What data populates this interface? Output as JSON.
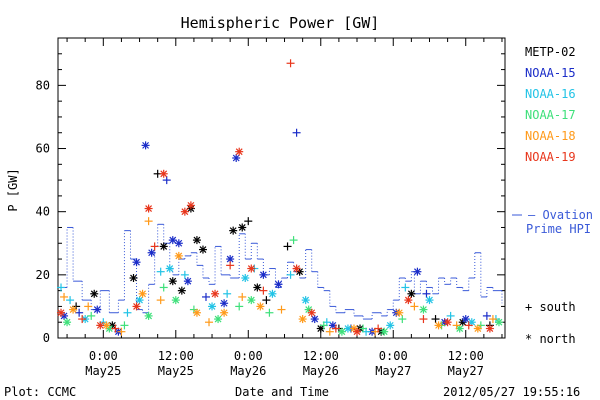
{
  "chart_data": {
    "type": "scatter",
    "title": "Hemispheric Power [GW]",
    "ylabel": "P [GW]",
    "xlabel": "Date and Time",
    "x_unit": "hours since 2012-05-24 00:00 UT",
    "xlim": [
      16.5,
      90.5
    ],
    "ylim": [
      0,
      95
    ],
    "yticks": [
      0,
      20,
      40,
      60,
      80
    ],
    "xticks": [
      {
        "x": 24,
        "label_time": "0:00",
        "label_date": "May25"
      },
      {
        "x": 36,
        "label_time": "12:00",
        "label_date": "May25"
      },
      {
        "x": 48,
        "label_time": "0:00",
        "label_date": "May26"
      },
      {
        "x": 60,
        "label_time": "12:00",
        "label_date": "May26"
      },
      {
        "x": 72,
        "label_time": "0:00",
        "label_date": "May27"
      },
      {
        "x": 84,
        "label_time": "12:00",
        "label_date": "May27"
      }
    ],
    "legend": {
      "position": "right",
      "entries": [
        {
          "name": "METP-02",
          "color": "#000000"
        },
        {
          "name": "NOAA-15",
          "color": "#1a2cc8"
        },
        {
          "name": "NOAA-16",
          "color": "#22c3e6"
        },
        {
          "name": "NOAA-17",
          "color": "#3ee07a"
        },
        {
          "name": "NOAA-18",
          "color": "#ff9a1a"
        },
        {
          "name": "NOAA-19",
          "color": "#e8361c"
        }
      ],
      "ovation_label_1": "– Ovation",
      "ovation_label_2": "Prime HPI",
      "south_label": "+ south",
      "north_label": "* north"
    },
    "ovation_color": "#3a5ad8",
    "ovation_prime": [
      {
        "t": 16.5,
        "v": 16
      },
      {
        "t": 18.0,
        "v": 35
      },
      {
        "t": 19.0,
        "v": 18
      },
      {
        "t": 20.5,
        "v": 12
      },
      {
        "t": 22.0,
        "v": 9
      },
      {
        "t": 23.5,
        "v": 15
      },
      {
        "t": 25.0,
        "v": 8
      },
      {
        "t": 26.5,
        "v": 12
      },
      {
        "t": 27.5,
        "v": 34
      },
      {
        "t": 28.5,
        "v": 25
      },
      {
        "t": 29.5,
        "v": 9
      },
      {
        "t": 30.5,
        "v": 8
      },
      {
        "t": 31.5,
        "v": 17
      },
      {
        "t": 32.5,
        "v": 29
      },
      {
        "t": 33.0,
        "v": 36
      },
      {
        "t": 34.0,
        "v": 30
      },
      {
        "t": 35.0,
        "v": 22
      },
      {
        "t": 35.5,
        "v": 20
      },
      {
        "t": 36.5,
        "v": 25
      },
      {
        "t": 37.5,
        "v": 26
      },
      {
        "t": 38.5,
        "v": 27
      },
      {
        "t": 39.5,
        "v": 23
      },
      {
        "t": 40.5,
        "v": 19
      },
      {
        "t": 41.5,
        "v": 17
      },
      {
        "t": 42.5,
        "v": 29
      },
      {
        "t": 43.5,
        "v": 20
      },
      {
        "t": 45.0,
        "v": 19
      },
      {
        "t": 46.5,
        "v": 33
      },
      {
        "t": 47.5,
        "v": 25
      },
      {
        "t": 48.5,
        "v": 30
      },
      {
        "t": 49.5,
        "v": 25
      },
      {
        "t": 50.5,
        "v": 20
      },
      {
        "t": 51.5,
        "v": 22
      },
      {
        "t": 52.5,
        "v": 16
      },
      {
        "t": 53.5,
        "v": 19
      },
      {
        "t": 54.5,
        "v": 24
      },
      {
        "t": 55.5,
        "v": 21
      },
      {
        "t": 56.5,
        "v": 19
      },
      {
        "t": 57.5,
        "v": 28
      },
      {
        "t": 58.5,
        "v": 21
      },
      {
        "t": 59.5,
        "v": 16
      },
      {
        "t": 60.5,
        "v": 15
      },
      {
        "t": 61.5,
        "v": 10
      },
      {
        "t": 62.5,
        "v": 8
      },
      {
        "t": 64.0,
        "v": 9
      },
      {
        "t": 65.5,
        "v": 7
      },
      {
        "t": 67.0,
        "v": 6
      },
      {
        "t": 68.5,
        "v": 8
      },
      {
        "t": 70.0,
        "v": 7
      },
      {
        "t": 71.0,
        "v": 9
      },
      {
        "t": 72.0,
        "v": 12
      },
      {
        "t": 73.0,
        "v": 19
      },
      {
        "t": 74.0,
        "v": 18
      },
      {
        "t": 75.0,
        "v": 21
      },
      {
        "t": 75.5,
        "v": 14
      },
      {
        "t": 76.5,
        "v": 18
      },
      {
        "t": 77.5,
        "v": 16
      },
      {
        "t": 78.5,
        "v": 14
      },
      {
        "t": 79.5,
        "v": 19
      },
      {
        "t": 80.5,
        "v": 17
      },
      {
        "t": 81.5,
        "v": 19
      },
      {
        "t": 82.5,
        "v": 16
      },
      {
        "t": 83.5,
        "v": 15
      },
      {
        "t": 84.5,
        "v": 19
      },
      {
        "t": 85.5,
        "v": 27
      },
      {
        "t": 86.5,
        "v": 13
      },
      {
        "t": 87.5,
        "v": 16
      },
      {
        "t": 88.5,
        "v": 15
      },
      {
        "t": 90.0,
        "v": 11
      }
    ],
    "series": [
      {
        "name": "METP-02",
        "color": "#000000",
        "points": [
          {
            "t": 19.5,
            "v": 10,
            "h": "S"
          },
          {
            "t": 22.5,
            "v": 14,
            "h": "N"
          },
          {
            "t": 25.5,
            "v": 4,
            "h": "N"
          },
          {
            "t": 29.0,
            "v": 19,
            "h": "N"
          },
          {
            "t": 33.0,
            "v": 52,
            "h": "S"
          },
          {
            "t": 34.0,
            "v": 29,
            "h": "N"
          },
          {
            "t": 35.5,
            "v": 18,
            "h": "N"
          },
          {
            "t": 37.0,
            "v": 15,
            "h": "N"
          },
          {
            "t": 38.5,
            "v": 41,
            "h": "N"
          },
          {
            "t": 39.5,
            "v": 31,
            "h": "N"
          },
          {
            "t": 40.5,
            "v": 28,
            "h": "N"
          },
          {
            "t": 45.5,
            "v": 34,
            "h": "N"
          },
          {
            "t": 47.0,
            "v": 35,
            "h": "N"
          },
          {
            "t": 48.0,
            "v": 37,
            "h": "S"
          },
          {
            "t": 49.5,
            "v": 16,
            "h": "N"
          },
          {
            "t": 51.0,
            "v": 12,
            "h": "S"
          },
          {
            "t": 54.5,
            "v": 29,
            "h": "S"
          },
          {
            "t": 56.5,
            "v": 21,
            "h": "N"
          },
          {
            "t": 60.0,
            "v": 3,
            "h": "N"
          },
          {
            "t": 63.0,
            "v": 3,
            "h": "S"
          },
          {
            "t": 66.5,
            "v": 3,
            "h": "N"
          },
          {
            "t": 70.0,
            "v": 2,
            "h": "N"
          },
          {
            "t": 75.0,
            "v": 14,
            "h": "N"
          },
          {
            "t": 79.0,
            "v": 6,
            "h": "S"
          },
          {
            "t": 83.5,
            "v": 5,
            "h": "N"
          },
          {
            "t": 88.0,
            "v": 4,
            "h": "S"
          }
        ]
      },
      {
        "name": "NOAA-15",
        "color": "#1a2cc8",
        "points": [
          {
            "t": 17.5,
            "v": 7,
            "h": "N"
          },
          {
            "t": 20.0,
            "v": 8,
            "h": "S"
          },
          {
            "t": 23.0,
            "v": 9,
            "h": "N"
          },
          {
            "t": 26.5,
            "v": 2,
            "h": "N"
          },
          {
            "t": 29.5,
            "v": 24,
            "h": "N"
          },
          {
            "t": 31.0,
            "v": 61,
            "h": "N"
          },
          {
            "t": 32.0,
            "v": 27,
            "h": "N"
          },
          {
            "t": 34.5,
            "v": 50,
            "h": "S"
          },
          {
            "t": 35.5,
            "v": 31,
            "h": "N"
          },
          {
            "t": 36.5,
            "v": 30,
            "h": "N"
          },
          {
            "t": 38.0,
            "v": 18,
            "h": "N"
          },
          {
            "t": 41.0,
            "v": 13,
            "h": "S"
          },
          {
            "t": 44.0,
            "v": 11,
            "h": "N"
          },
          {
            "t": 45.0,
            "v": 25,
            "h": "N"
          },
          {
            "t": 46.0,
            "v": 57,
            "h": "N"
          },
          {
            "t": 50.5,
            "v": 20,
            "h": "N"
          },
          {
            "t": 53.0,
            "v": 17,
            "h": "N"
          },
          {
            "t": 56.0,
            "v": 65,
            "h": "S"
          },
          {
            "t": 59.0,
            "v": 6,
            "h": "N"
          },
          {
            "t": 62.0,
            "v": 4,
            "h": "N"
          },
          {
            "t": 65.0,
            "v": 3,
            "h": "S"
          },
          {
            "t": 68.5,
            "v": 2,
            "h": "N"
          },
          {
            "t": 72.5,
            "v": 8,
            "h": "N"
          },
          {
            "t": 76.0,
            "v": 21,
            "h": "N"
          },
          {
            "t": 77.5,
            "v": 14,
            "h": "S"
          },
          {
            "t": 80.5,
            "v": 5,
            "h": "N"
          },
          {
            "t": 84.0,
            "v": 6,
            "h": "N"
          },
          {
            "t": 87.5,
            "v": 7,
            "h": "S"
          }
        ]
      },
      {
        "name": "NOAA-16",
        "color": "#22c3e6",
        "points": [
          {
            "t": 17.0,
            "v": 16,
            "h": "S"
          },
          {
            "t": 18.5,
            "v": 12,
            "h": "S"
          },
          {
            "t": 21.0,
            "v": 6,
            "h": "N"
          },
          {
            "t": 24.0,
            "v": 5,
            "h": "S"
          },
          {
            "t": 28.0,
            "v": 8,
            "h": "S"
          },
          {
            "t": 30.0,
            "v": 12,
            "h": "N"
          },
          {
            "t": 33.5,
            "v": 21,
            "h": "S"
          },
          {
            "t": 35.0,
            "v": 22,
            "h": "N"
          },
          {
            "t": 37.5,
            "v": 20,
            "h": "S"
          },
          {
            "t": 42.0,
            "v": 10,
            "h": "N"
          },
          {
            "t": 44.5,
            "v": 14,
            "h": "S"
          },
          {
            "t": 47.5,
            "v": 19,
            "h": "N"
          },
          {
            "t": 49.0,
            "v": 22,
            "h": "S"
          },
          {
            "t": 52.0,
            "v": 14,
            "h": "N"
          },
          {
            "t": 55.0,
            "v": 20,
            "h": "S"
          },
          {
            "t": 57.5,
            "v": 12,
            "h": "N"
          },
          {
            "t": 61.0,
            "v": 5,
            "h": "S"
          },
          {
            "t": 64.5,
            "v": 3,
            "h": "N"
          },
          {
            "t": 67.5,
            "v": 2,
            "h": "S"
          },
          {
            "t": 71.5,
            "v": 4,
            "h": "N"
          },
          {
            "t": 74.0,
            "v": 16,
            "h": "S"
          },
          {
            "t": 78.0,
            "v": 12,
            "h": "N"
          },
          {
            "t": 81.5,
            "v": 7,
            "h": "S"
          },
          {
            "t": 85.0,
            "v": 5,
            "h": "N"
          },
          {
            "t": 89.0,
            "v": 6,
            "h": "S"
          }
        ]
      },
      {
        "name": "NOAA-17",
        "color": "#3ee07a",
        "points": [
          {
            "t": 18.0,
            "v": 5,
            "h": "N"
          },
          {
            "t": 22.0,
            "v": 7,
            "h": "S"
          },
          {
            "t": 25.0,
            "v": 3,
            "h": "N"
          },
          {
            "t": 27.5,
            "v": 4,
            "h": "S"
          },
          {
            "t": 31.5,
            "v": 7,
            "h": "N"
          },
          {
            "t": 34.0,
            "v": 16,
            "h": "S"
          },
          {
            "t": 36.0,
            "v": 12,
            "h": "N"
          },
          {
            "t": 39.0,
            "v": 9,
            "h": "S"
          },
          {
            "t": 43.0,
            "v": 6,
            "h": "N"
          },
          {
            "t": 46.5,
            "v": 10,
            "h": "S"
          },
          {
            "t": 48.5,
            "v": 12,
            "h": "N"
          },
          {
            "t": 51.5,
            "v": 8,
            "h": "S"
          },
          {
            "t": 55.5,
            "v": 31,
            "h": "S"
          },
          {
            "t": 58.0,
            "v": 9,
            "h": "N"
          },
          {
            "t": 60.5,
            "v": 4,
            "h": "S"
          },
          {
            "t": 63.5,
            "v": 2,
            "h": "N"
          },
          {
            "t": 67.0,
            "v": 3,
            "h": "S"
          },
          {
            "t": 70.5,
            "v": 2,
            "h": "N"
          },
          {
            "t": 73.5,
            "v": 6,
            "h": "S"
          },
          {
            "t": 77.0,
            "v": 9,
            "h": "N"
          },
          {
            "t": 80.0,
            "v": 4,
            "h": "S"
          },
          {
            "t": 83.0,
            "v": 3,
            "h": "N"
          },
          {
            "t": 86.5,
            "v": 4,
            "h": "S"
          },
          {
            "t": 89.5,
            "v": 5,
            "h": "N"
          }
        ]
      },
      {
        "name": "NOAA-18",
        "color": "#ff9a1a",
        "points": [
          {
            "t": 17.5,
            "v": 13,
            "h": "S"
          },
          {
            "t": 19.0,
            "v": 9,
            "h": "N"
          },
          {
            "t": 21.5,
            "v": 10,
            "h": "S"
          },
          {
            "t": 24.5,
            "v": 4,
            "h": "N"
          },
          {
            "t": 27.0,
            "v": 2,
            "h": "S"
          },
          {
            "t": 30.5,
            "v": 14,
            "h": "N"
          },
          {
            "t": 31.5,
            "v": 37,
            "h": "S"
          },
          {
            "t": 33.5,
            "v": 12,
            "h": "S"
          },
          {
            "t": 36.5,
            "v": 26,
            "h": "N"
          },
          {
            "t": 39.5,
            "v": 8,
            "h": "N"
          },
          {
            "t": 41.5,
            "v": 5,
            "h": "S"
          },
          {
            "t": 44.0,
            "v": 8,
            "h": "N"
          },
          {
            "t": 47.0,
            "v": 13,
            "h": "S"
          },
          {
            "t": 50.0,
            "v": 10,
            "h": "N"
          },
          {
            "t": 53.5,
            "v": 9,
            "h": "S"
          },
          {
            "t": 57.0,
            "v": 6,
            "h": "N"
          },
          {
            "t": 61.5,
            "v": 2,
            "h": "S"
          },
          {
            "t": 65.5,
            "v": 3,
            "h": "N"
          },
          {
            "t": 69.0,
            "v": 2,
            "h": "S"
          },
          {
            "t": 73.0,
            "v": 8,
            "h": "N"
          },
          {
            "t": 75.5,
            "v": 10,
            "h": "S"
          },
          {
            "t": 79.5,
            "v": 4,
            "h": "N"
          },
          {
            "t": 82.5,
            "v": 4,
            "h": "S"
          },
          {
            "t": 86.0,
            "v": 3,
            "h": "N"
          },
          {
            "t": 88.5,
            "v": 6,
            "h": "S"
          }
        ]
      },
      {
        "name": "NOAA-19",
        "color": "#e8361c",
        "points": [
          {
            "t": 17.0,
            "v": 8,
            "h": "N"
          },
          {
            "t": 20.5,
            "v": 6,
            "h": "S"
          },
          {
            "t": 23.5,
            "v": 4,
            "h": "N"
          },
          {
            "t": 26.0,
            "v": 3,
            "h": "S"
          },
          {
            "t": 29.5,
            "v": 10,
            "h": "N"
          },
          {
            "t": 31.5,
            "v": 41,
            "h": "N"
          },
          {
            "t": 32.5,
            "v": 29,
            "h": "S"
          },
          {
            "t": 34.0,
            "v": 52,
            "h": "N"
          },
          {
            "t": 37.5,
            "v": 40,
            "h": "N"
          },
          {
            "t": 38.5,
            "v": 42,
            "h": "N"
          },
          {
            "t": 42.5,
            "v": 14,
            "h": "N"
          },
          {
            "t": 45.0,
            "v": 23,
            "h": "S"
          },
          {
            "t": 46.5,
            "v": 59,
            "h": "N"
          },
          {
            "t": 48.5,
            "v": 22,
            "h": "N"
          },
          {
            "t": 50.5,
            "v": 15,
            "h": "S"
          },
          {
            "t": 55.0,
            "v": 87,
            "h": "S"
          },
          {
            "t": 56.0,
            "v": 22,
            "h": "N"
          },
          {
            "t": 58.5,
            "v": 8,
            "h": "N"
          },
          {
            "t": 62.5,
            "v": 3,
            "h": "S"
          },
          {
            "t": 66.0,
            "v": 2,
            "h": "N"
          },
          {
            "t": 69.5,
            "v": 3,
            "h": "S"
          },
          {
            "t": 74.5,
            "v": 12,
            "h": "N"
          },
          {
            "t": 77.0,
            "v": 6,
            "h": "S"
          },
          {
            "t": 81.0,
            "v": 5,
            "h": "N"
          },
          {
            "t": 84.5,
            "v": 4,
            "h": "S"
          },
          {
            "t": 88.0,
            "v": 3,
            "h": "N"
          }
        ]
      }
    ]
  },
  "footer": {
    "plot_credit": "Plot: CCMC",
    "timestamp": "2012/05/27 19:55:16"
  }
}
